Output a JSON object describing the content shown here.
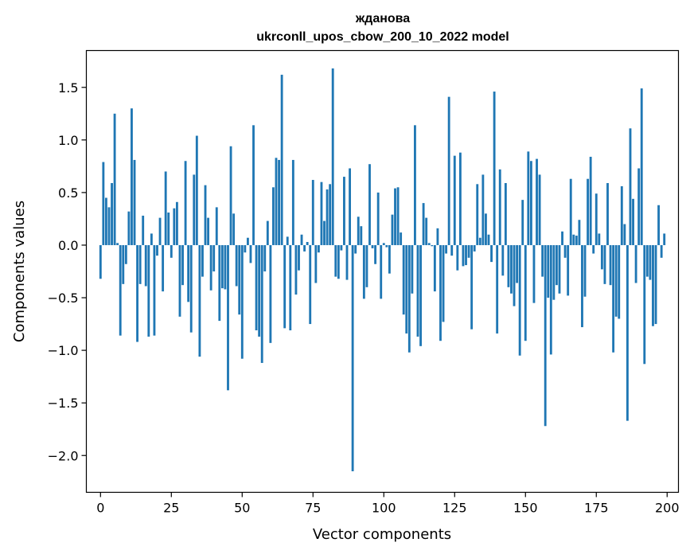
{
  "chart_data": {
    "type": "bar",
    "title": "жданова",
    "subtitle": "ukrconll_upos_cbow_200_10_2022 model",
    "xlabel": "Vector components",
    "ylabel": "Components values",
    "xlim": [
      -5,
      204
    ],
    "ylim": [
      -2.35,
      1.85
    ],
    "xticks": [
      0,
      25,
      50,
      75,
      100,
      125,
      150,
      175,
      200
    ],
    "yticks": [
      -2.0,
      -1.5,
      -1.0,
      -0.5,
      0.0,
      0.5,
      1.0,
      1.5
    ],
    "ytick_labels": [
      "−2.0",
      "−1.5",
      "−1.0",
      "−0.5",
      "0.0",
      "0.5",
      "1.0",
      "1.5"
    ],
    "grid": false,
    "bar_color": "#1f77b4",
    "values": [
      -0.32,
      0.79,
      0.45,
      0.36,
      0.59,
      1.25,
      0.02,
      -0.86,
      -0.37,
      -0.18,
      0.32,
      1.3,
      0.81,
      -0.92,
      -0.37,
      0.28,
      -0.39,
      -0.87,
      0.11,
      -0.86,
      -0.1,
      0.26,
      -0.44,
      0.7,
      0.31,
      -0.12,
      0.35,
      0.41,
      -0.68,
      -0.38,
      0.8,
      -0.54,
      -0.83,
      0.67,
      1.04,
      -1.06,
      -0.3,
      0.57,
      0.26,
      -0.43,
      -0.25,
      0.36,
      -0.72,
      -0.41,
      -0.42,
      -1.38,
      0.94,
      0.3,
      -0.39,
      -0.66,
      -1.08,
      -0.07,
      0.07,
      -0.17,
      1.14,
      -0.81,
      -0.87,
      -1.12,
      -0.25,
      0.23,
      -0.93,
      0.55,
      0.83,
      0.81,
      1.62,
      -0.79,
      0.08,
      -0.81,
      0.81,
      -0.47,
      -0.24,
      0.1,
      -0.06,
      0.03,
      -0.75,
      0.62,
      -0.36,
      -0.07,
      0.6,
      0.23,
      0.53,
      0.58,
      1.68,
      -0.3,
      -0.32,
      -0.05,
      0.65,
      -0.33,
      0.73,
      -2.15,
      -0.08,
      0.27,
      0.18,
      -0.51,
      -0.4,
      0.77,
      -0.03,
      -0.18,
      0.5,
      -0.51,
      0.02,
      -0.02,
      -0.27,
      0.29,
      0.54,
      0.55,
      0.12,
      -0.66,
      -0.84,
      -1.02,
      -0.46,
      1.14,
      -0.87,
      -0.96,
      0.4,
      0.26,
      0.02,
      -0.01,
      -0.44,
      0.16,
      -0.91,
      -0.73,
      -0.08,
      1.41,
      -0.1,
      0.85,
      -0.24,
      0.88,
      -0.2,
      -0.19,
      -0.12,
      -0.8,
      -0.06,
      0.58,
      0.07,
      0.67,
      0.3,
      0.1,
      -0.16,
      1.46,
      -0.84,
      0.72,
      -0.29,
      0.59,
      -0.4,
      -0.46,
      -0.58,
      -0.36,
      -1.05,
      0.43,
      -0.91,
      0.89,
      0.8,
      -0.55,
      0.82,
      0.67,
      -0.3,
      -1.72,
      -0.5,
      -1.04,
      -0.52,
      -0.38,
      -0.46,
      0.13,
      -0.12,
      -0.48,
      0.63,
      0.1,
      0.09,
      0.24,
      -0.78,
      -0.49,
      0.63,
      0.84,
      -0.08,
      0.49,
      0.11,
      -0.23,
      -0.37,
      0.59,
      -0.38,
      -1.02,
      -0.68,
      -0.7,
      0.56,
      0.2,
      -1.67,
      1.11,
      0.44,
      -0.36,
      0.73,
      1.49,
      -1.13,
      -0.3,
      -0.33,
      -0.77,
      -0.75,
      0.38,
      -0.12,
      0.11
    ]
  }
}
